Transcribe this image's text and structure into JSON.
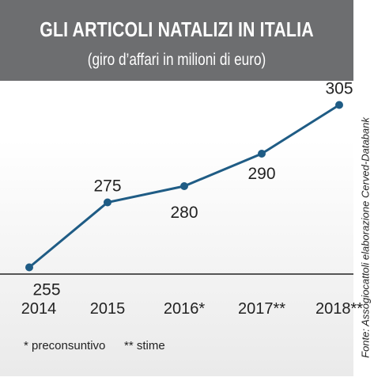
{
  "chart_data": {
    "type": "line",
    "title": "GLI ARTICOLI NATALIZI IN ITALIA",
    "subtitle": "(giro d’affari in milioni di euro)",
    "categories": [
      "2014",
      "2015",
      "2016*",
      "2017**",
      "2018**"
    ],
    "series": [
      {
        "values": [
          255,
          275,
          280,
          290,
          305
        ],
        "labels": [
          "255",
          "275",
          "280",
          "290",
          "305"
        ]
      }
    ],
    "ylim": [
      250,
      310
    ],
    "grid": false,
    "legend": "none",
    "line_color": "#1f5c85"
  },
  "footnotes": [
    "* preconsuntivo",
    "** stime"
  ],
  "source": "Fonte: Assogiocattoli elaborazione Cerved-Databank",
  "colors": {
    "title_bar": "#6d6e70",
    "series": "#1f5c85"
  }
}
